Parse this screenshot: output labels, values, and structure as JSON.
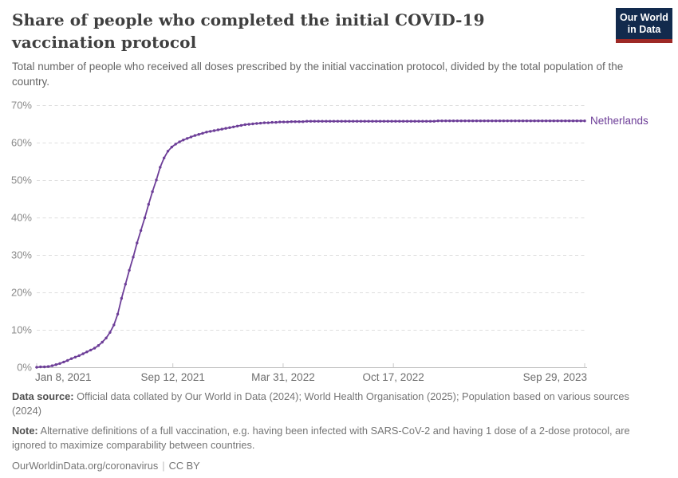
{
  "header": {
    "title": "Share of people who completed the initial COVID-19 vaccination protocol",
    "subtitle": "Total number of people who received all doses prescribed by the initial vaccination protocol, divided by the total population of the country.",
    "logo_line1": "Our World",
    "logo_line2": "in Data"
  },
  "colors": {
    "line": "#6d3e98",
    "series_label": "#6d3e98",
    "gridline": "#dedede",
    "axis": "#bdbdbd",
    "tick": "#c9c9c9",
    "y_tick_text": "#8a8a8a",
    "x_tick_text": "#6e6e6e",
    "logo_bg": "#122a4d",
    "logo_red": "#9d2926"
  },
  "chart_data": {
    "type": "line",
    "title": "Share of people who completed the initial COVID-19 vaccination protocol",
    "xlabel": "",
    "ylabel": "",
    "ylim": [
      0,
      70
    ],
    "y_ticks": [
      0,
      10,
      20,
      30,
      40,
      50,
      60,
      70
    ],
    "y_tick_suffix": "%",
    "grid": "horizontal-dashed",
    "legend_position": "end-of-line-label",
    "x_range": [
      "2021-01-08",
      "2023-09-29"
    ],
    "x_ticks": [
      {
        "label": "Jan 8, 2021",
        "date": "2021-01-08",
        "align": "start"
      },
      {
        "label": "Sep 12, 2021",
        "date": "2021-09-12",
        "align": "middle"
      },
      {
        "label": "Mar 31, 2022",
        "date": "2022-03-31",
        "align": "middle"
      },
      {
        "label": "Oct 17, 2022",
        "date": "2022-10-17",
        "align": "middle"
      },
      {
        "label": "Sep 29, 2023",
        "date": "2023-09-29",
        "align": "end"
      }
    ],
    "series": [
      {
        "name": "Netherlands",
        "color": "#6d3e98",
        "marker": "dot-weekly",
        "points": [
          [
            "2021-01-08",
            0
          ],
          [
            "2021-01-15",
            0.1
          ],
          [
            "2021-01-22",
            0.1
          ],
          [
            "2021-01-29",
            0.2
          ],
          [
            "2021-02-05",
            0.4
          ],
          [
            "2021-02-12",
            0.7
          ],
          [
            "2021-02-19",
            1
          ],
          [
            "2021-02-26",
            1.4
          ],
          [
            "2021-03-05",
            1.8
          ],
          [
            "2021-03-12",
            2.3
          ],
          [
            "2021-03-19",
            2.7
          ],
          [
            "2021-03-26",
            3.1
          ],
          [
            "2021-04-02",
            3.6
          ],
          [
            "2021-04-09",
            4.1
          ],
          [
            "2021-04-16",
            4.6
          ],
          [
            "2021-04-23",
            5.1
          ],
          [
            "2021-04-30",
            5.8
          ],
          [
            "2021-05-07",
            6.7
          ],
          [
            "2021-05-14",
            7.8
          ],
          [
            "2021-05-21",
            9.3
          ],
          [
            "2021-05-28",
            11.3
          ],
          [
            "2021-06-04",
            14.2
          ],
          [
            "2021-06-11",
            18.4
          ],
          [
            "2021-06-18",
            22.2
          ],
          [
            "2021-06-25",
            25.9
          ],
          [
            "2021-07-02",
            29.4
          ],
          [
            "2021-07-09",
            33.2
          ],
          [
            "2021-07-16",
            36.5
          ],
          [
            "2021-07-23",
            39.9
          ],
          [
            "2021-07-30",
            43.5
          ],
          [
            "2021-08-06",
            46.9
          ],
          [
            "2021-08-13",
            50
          ],
          [
            "2021-08-20",
            53.4
          ],
          [
            "2021-08-27",
            55.9
          ],
          [
            "2021-09-03",
            57.7
          ],
          [
            "2021-09-10",
            58.8
          ],
          [
            "2021-09-17",
            59.6
          ],
          [
            "2021-09-24",
            60.2
          ],
          [
            "2021-10-01",
            60.7
          ],
          [
            "2021-10-08",
            61.1
          ],
          [
            "2021-10-15",
            61.5
          ],
          [
            "2021-10-22",
            61.9
          ],
          [
            "2021-10-29",
            62.2
          ],
          [
            "2021-11-05",
            62.5
          ],
          [
            "2021-11-12",
            62.8
          ],
          [
            "2021-11-19",
            63
          ],
          [
            "2021-11-26",
            63.2
          ],
          [
            "2021-12-03",
            63.4
          ],
          [
            "2021-12-10",
            63.6
          ],
          [
            "2021-12-17",
            63.8
          ],
          [
            "2021-12-24",
            64
          ],
          [
            "2021-12-31",
            64.2
          ],
          [
            "2022-01-07",
            64.4
          ],
          [
            "2022-01-14",
            64.6
          ],
          [
            "2022-01-21",
            64.8
          ],
          [
            "2022-01-28",
            64.9
          ],
          [
            "2022-02-04",
            65
          ],
          [
            "2022-02-11",
            65.1
          ],
          [
            "2022-02-18",
            65.2
          ],
          [
            "2022-02-25",
            65.3
          ],
          [
            "2022-03-04",
            65.3
          ],
          [
            "2022-03-11",
            65.4
          ],
          [
            "2022-03-18",
            65.4
          ],
          [
            "2022-03-25",
            65.5
          ],
          [
            "2022-04-01",
            65.5
          ],
          [
            "2022-04-08",
            65.5
          ],
          [
            "2022-04-15",
            65.6
          ],
          [
            "2022-04-22",
            65.6
          ],
          [
            "2022-04-29",
            65.6
          ],
          [
            "2022-05-06",
            65.6
          ],
          [
            "2022-05-13",
            65.7
          ],
          [
            "2022-05-20",
            65.7
          ],
          [
            "2022-05-27",
            65.7
          ],
          [
            "2022-06-03",
            65.7
          ],
          [
            "2022-06-10",
            65.7
          ],
          [
            "2022-06-17",
            65.7
          ],
          [
            "2022-06-24",
            65.7
          ],
          [
            "2022-07-01",
            65.7
          ],
          [
            "2022-07-08",
            65.7
          ],
          [
            "2022-07-15",
            65.7
          ],
          [
            "2022-07-22",
            65.7
          ],
          [
            "2022-07-29",
            65.7
          ],
          [
            "2022-08-05",
            65.7
          ],
          [
            "2022-08-12",
            65.7
          ],
          [
            "2022-08-19",
            65.7
          ],
          [
            "2022-08-26",
            65.7
          ],
          [
            "2022-09-02",
            65.7
          ],
          [
            "2022-09-09",
            65.7
          ],
          [
            "2022-09-16",
            65.7
          ],
          [
            "2022-09-23",
            65.7
          ],
          [
            "2022-09-30",
            65.7
          ],
          [
            "2022-10-07",
            65.7
          ],
          [
            "2022-10-14",
            65.7
          ],
          [
            "2022-10-21",
            65.7
          ],
          [
            "2022-10-28",
            65.7
          ],
          [
            "2022-11-04",
            65.7
          ],
          [
            "2022-11-11",
            65.7
          ],
          [
            "2022-11-18",
            65.7
          ],
          [
            "2022-11-25",
            65.7
          ],
          [
            "2022-12-02",
            65.7
          ],
          [
            "2022-12-09",
            65.7
          ],
          [
            "2022-12-16",
            65.7
          ],
          [
            "2022-12-23",
            65.7
          ],
          [
            "2022-12-30",
            65.7
          ],
          [
            "2023-01-06",
            65.8
          ],
          [
            "2023-01-13",
            65.8
          ],
          [
            "2023-01-20",
            65.8
          ],
          [
            "2023-01-27",
            65.8
          ],
          [
            "2023-02-03",
            65.8
          ],
          [
            "2023-02-10",
            65.8
          ],
          [
            "2023-02-17",
            65.8
          ],
          [
            "2023-02-24",
            65.8
          ],
          [
            "2023-03-03",
            65.8
          ],
          [
            "2023-03-10",
            65.8
          ],
          [
            "2023-03-17",
            65.8
          ],
          [
            "2023-03-24",
            65.8
          ],
          [
            "2023-03-31",
            65.8
          ],
          [
            "2023-04-07",
            65.8
          ],
          [
            "2023-04-14",
            65.8
          ],
          [
            "2023-04-21",
            65.8
          ],
          [
            "2023-04-28",
            65.8
          ],
          [
            "2023-05-05",
            65.8
          ],
          [
            "2023-05-12",
            65.8
          ],
          [
            "2023-05-19",
            65.8
          ],
          [
            "2023-05-26",
            65.8
          ],
          [
            "2023-06-02",
            65.8
          ],
          [
            "2023-06-09",
            65.8
          ],
          [
            "2023-06-16",
            65.8
          ],
          [
            "2023-06-23",
            65.8
          ],
          [
            "2023-06-30",
            65.8
          ],
          [
            "2023-07-07",
            65.8
          ],
          [
            "2023-07-14",
            65.8
          ],
          [
            "2023-07-21",
            65.8
          ],
          [
            "2023-07-28",
            65.8
          ],
          [
            "2023-08-04",
            65.8
          ],
          [
            "2023-08-11",
            65.8
          ],
          [
            "2023-08-18",
            65.8
          ],
          [
            "2023-08-25",
            65.8
          ],
          [
            "2023-09-01",
            65.8
          ],
          [
            "2023-09-08",
            65.8
          ],
          [
            "2023-09-15",
            65.8
          ],
          [
            "2023-09-22",
            65.8
          ],
          [
            "2023-09-29",
            65.8
          ]
        ]
      }
    ]
  },
  "footer": {
    "source_label": "Data source:",
    "source_text": " Official data collated by Our World in Data (2024); World Health Organisation (2025); Population based on various sources (2024)",
    "note_label": "Note:",
    "note_text": " Alternative definitions of a full vaccination, e.g. having been infected with SARS-CoV-2 and having 1 dose of a 2-dose protocol, are ignored to maximize comparability between countries.",
    "link": "OurWorldinData.org/coronavirus",
    "separator": "|",
    "license": "CC BY"
  }
}
